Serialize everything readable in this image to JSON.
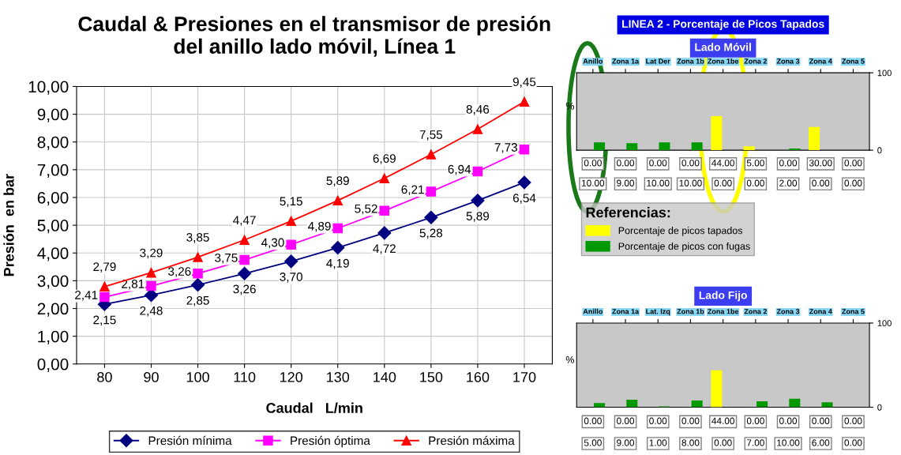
{
  "chart_data": [
    {
      "type": "line",
      "title": "Caudal & Presiones en el transmisor de presión\ndel anillo lado móvil, Línea 1",
      "xlabel": "Caudal   L/min",
      "ylabel": "Presión  en bar",
      "categories": [
        "80",
        "90",
        "100",
        "110",
        "120",
        "130",
        "140",
        "150",
        "160",
        "170"
      ],
      "ylim": [
        0,
        10
      ],
      "yticks": [
        {
          "value": 0,
          "label": "0,00"
        },
        {
          "value": 1,
          "label": "1,00"
        },
        {
          "value": 2,
          "label": "2,00"
        },
        {
          "value": 3,
          "label": "3,00"
        },
        {
          "value": 4,
          "label": "4,00"
        },
        {
          "value": 5,
          "label": "5,00"
        },
        {
          "value": 6,
          "label": "6,00"
        },
        {
          "value": 7,
          "label": "7,00"
        },
        {
          "value": 8,
          "label": "8,00"
        },
        {
          "value": 9,
          "label": "9,00"
        },
        {
          "value": 10,
          "label": "10,00"
        }
      ],
      "grid": true,
      "legend": "bottom",
      "line_style": "solid",
      "series": [
        {
          "name": "Presión mínima",
          "color": "#000080",
          "marker": "diamond",
          "values": [
            2.15,
            2.48,
            2.85,
            3.26,
            3.7,
            4.19,
            4.72,
            5.28,
            5.89,
            6.54
          ],
          "value_labels": [
            "2,15",
            "2,48",
            "2,85",
            "3,26",
            "3,70",
            "4,19",
            "4,72",
            "5,28",
            "5,89",
            "6,54"
          ]
        },
        {
          "name": "Presión óptima",
          "color": "#ff00ff",
          "marker": "square",
          "values": [
            2.41,
            2.81,
            3.26,
            3.75,
            4.3,
            4.89,
            5.52,
            6.21,
            6.94,
            7.73
          ],
          "value_labels": [
            "2,41",
            "2,81",
            "3,26",
            "3,75",
            "4,30",
            "4,89",
            "5,52",
            "6,21",
            "6,94",
            "7,73"
          ]
        },
        {
          "name": "Presión máxima",
          "color": "#ff0000",
          "marker": "triangle",
          "values": [
            2.79,
            3.29,
            3.85,
            4.47,
            5.15,
            5.89,
            6.69,
            7.55,
            8.46,
            9.45
          ],
          "value_labels": [
            "2,79",
            "3,29",
            "3,85",
            "4,47",
            "5,15",
            "5,89",
            "6,69",
            "7,55",
            "8,46",
            "9,45"
          ]
        }
      ]
    },
    {
      "type": "bar",
      "title": "LINEA 2 - Porcentaje de Picos Tapados",
      "subtitle": "Lado Móvil",
      "ylabel": "%",
      "legend_title": "Referencias:",
      "legend": "bottom",
      "categories": [
        "Anillo",
        "Zona 1a",
        "Lat Der",
        "Zona 1b",
        "Zona 1be",
        "Zona 2",
        "Zona 3",
        "Zona 4",
        "Zona 5"
      ],
      "ylim": [
        0,
        100
      ],
      "yticks": [
        0,
        100
      ],
      "series": [
        {
          "name": "Porcentaje de picos tapados",
          "color": "#ffff00",
          "values": [
            0,
            0,
            0,
            0,
            44,
            5,
            0,
            30,
            0
          ],
          "value_labels": [
            "0.00",
            "0.00",
            "0.00",
            "0.00",
            "44.00",
            "5.00",
            "0.00",
            "30.00",
            "0.00"
          ]
        },
        {
          "name": "Porcentaje de picos con fugas",
          "color": "#009900",
          "values": [
            10,
            9,
            10,
            10,
            0,
            0,
            2,
            0,
            0
          ],
          "value_labels": [
            "10.00",
            "9.00",
            "10.00",
            "10.00",
            "0.00",
            "0.00",
            "2.00",
            "0.00",
            "0.00"
          ]
        }
      ]
    },
    {
      "type": "bar",
      "title": "Lado Fijo",
      "ylabel": "%",
      "categories": [
        "Anillo",
        "Zona 1a",
        "Lat. Izq",
        "Zona 1b",
        "Zona 1be",
        "Zona 2",
        "Zona 3",
        "Zona 4",
        "Zona 5"
      ],
      "ylim": [
        0,
        100
      ],
      "yticks": [
        0,
        100
      ],
      "series": [
        {
          "color": "#ffff00",
          "values": [
            0,
            0,
            0,
            0,
            44,
            0,
            0,
            0,
            0
          ],
          "value_labels": [
            "0.00",
            "0.00",
            "0.00",
            "0.00",
            "44.00",
            "0.00",
            "0.00",
            "0.00",
            "0.00"
          ]
        },
        {
          "color": "#009900",
          "values": [
            5,
            9,
            1,
            8,
            0,
            7,
            10,
            6,
            0
          ],
          "value_labels": [
            "5.00",
            "9.00",
            "1.00",
            "8.00",
            "0.00",
            "7.00",
            "10.00",
            "6.00",
            "0.00"
          ]
        }
      ]
    }
  ]
}
